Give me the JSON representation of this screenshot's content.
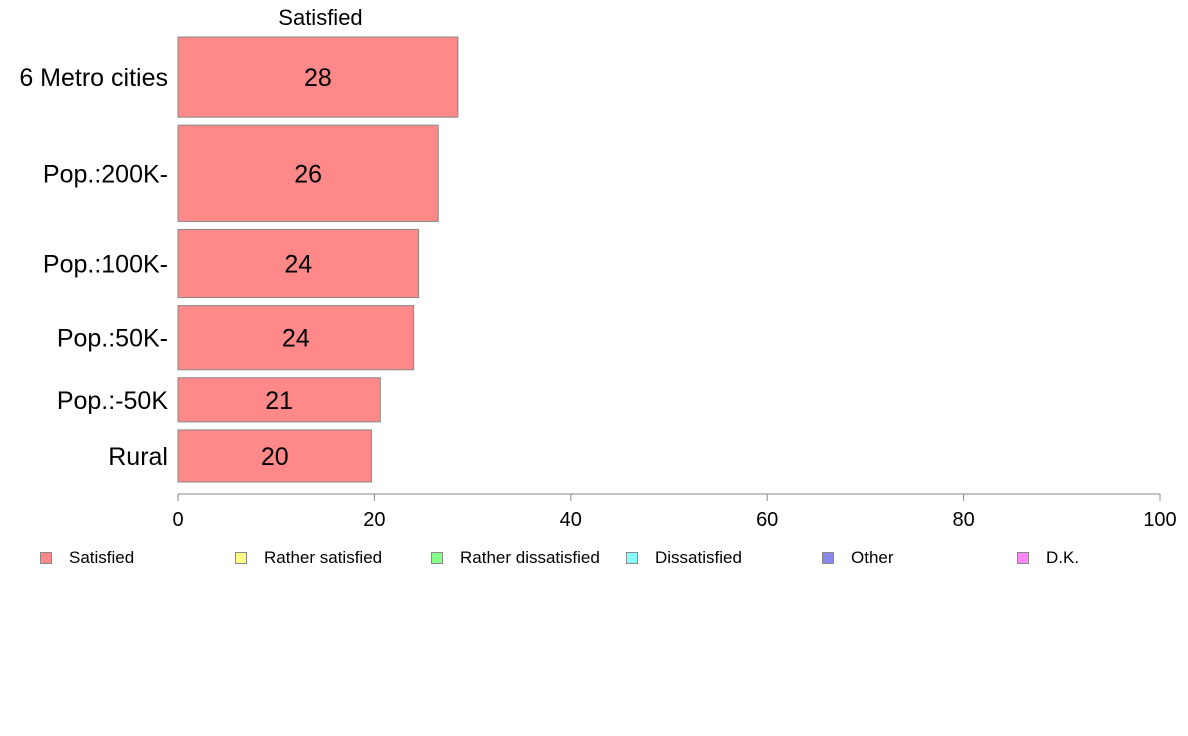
{
  "chart_data": {
    "type": "bar",
    "orientation": "horizontal",
    "stacked": true,
    "panel_title": "Satisfied",
    "categories": [
      "6 Metro cities",
      "Pop.:200K-",
      "Pop.:100K-",
      "Pop.:50K-",
      "Pop.:-50K",
      "Rural"
    ],
    "relative_bar_heights": [
      1.0,
      1.2,
      0.85,
      0.8,
      0.55,
      0.65
    ],
    "series": [
      {
        "name": "Satisfied",
        "color": "#ff8888",
        "values": [
          28.5,
          26.5,
          24.5,
          24,
          20.6,
          19.7
        ],
        "labels": [
          "28",
          "26",
          "24",
          "24",
          "21",
          "20"
        ]
      },
      {
        "name": "Rather satisfied",
        "color": "#ffff88",
        "values": [
          null,
          null,
          null,
          null,
          null,
          null
        ]
      },
      {
        "name": "Rather dissatisfied",
        "color": "#88ff88",
        "values": [
          null,
          null,
          null,
          null,
          null,
          null
        ]
      },
      {
        "name": "Dissatisfied",
        "color": "#88ffff",
        "values": [
          null,
          null,
          null,
          null,
          null,
          null
        ]
      },
      {
        "name": "Other",
        "color": "#8888ee",
        "values": [
          null,
          null,
          null,
          null,
          null,
          null
        ]
      },
      {
        "name": "D.K.",
        "color": "#ff88ff",
        "values": [
          null,
          null,
          null,
          null,
          null,
          null
        ]
      }
    ],
    "xlim": [
      0,
      100
    ],
    "xticks": [
      "0",
      "20",
      "40",
      "60",
      "80",
      "100"
    ],
    "grid": false,
    "legend_position": "bottom"
  },
  "legend": {
    "items": [
      {
        "label": "Satisfied",
        "color": "#ff8888"
      },
      {
        "label": "Rather satisfied",
        "color": "#ffff88"
      },
      {
        "label": "Rather dissatisfied",
        "color": "#88ff88"
      },
      {
        "label": "Dissatisfied",
        "color": "#88ffff"
      },
      {
        "label": "Other",
        "color": "#8888ee"
      },
      {
        "label": "D.K.",
        "color": "#ff88ff"
      }
    ]
  }
}
